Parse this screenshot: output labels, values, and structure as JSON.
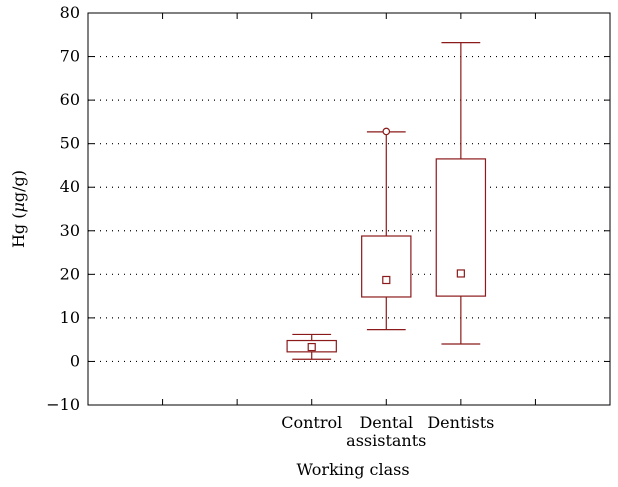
{
  "chart_data": {
    "type": "box",
    "title": "",
    "xlabel": "Working class",
    "ylabel_prefix": "Hg (",
    "ylabel_mu": "μ",
    "ylabel_suffix": "g/g)",
    "ylim": [
      -10,
      80
    ],
    "yticks": [
      -10,
      0,
      10,
      20,
      30,
      40,
      50,
      60,
      70,
      80
    ],
    "grid": "horizontal dotted",
    "color": "#8b1a1a",
    "categories": [
      {
        "label_lines": [
          "Control"
        ],
        "whisker_low": 0.5,
        "q1": 2.2,
        "median": 3.3,
        "q3": 4.8,
        "whisker_high": 6.2,
        "outliers": []
      },
      {
        "label_lines": [
          "Dental",
          "assistants"
        ],
        "whisker_low": 7.3,
        "q1": 14.8,
        "median": 18.7,
        "q3": 28.8,
        "whisker_high": 52.7,
        "outliers": [
          52.8
        ]
      },
      {
        "label_lines": [
          "Dentists"
        ],
        "whisker_low": 4.0,
        "q1": 15.0,
        "median": 20.2,
        "q3": 46.5,
        "whisker_high": 73.2,
        "outliers": []
      }
    ]
  }
}
